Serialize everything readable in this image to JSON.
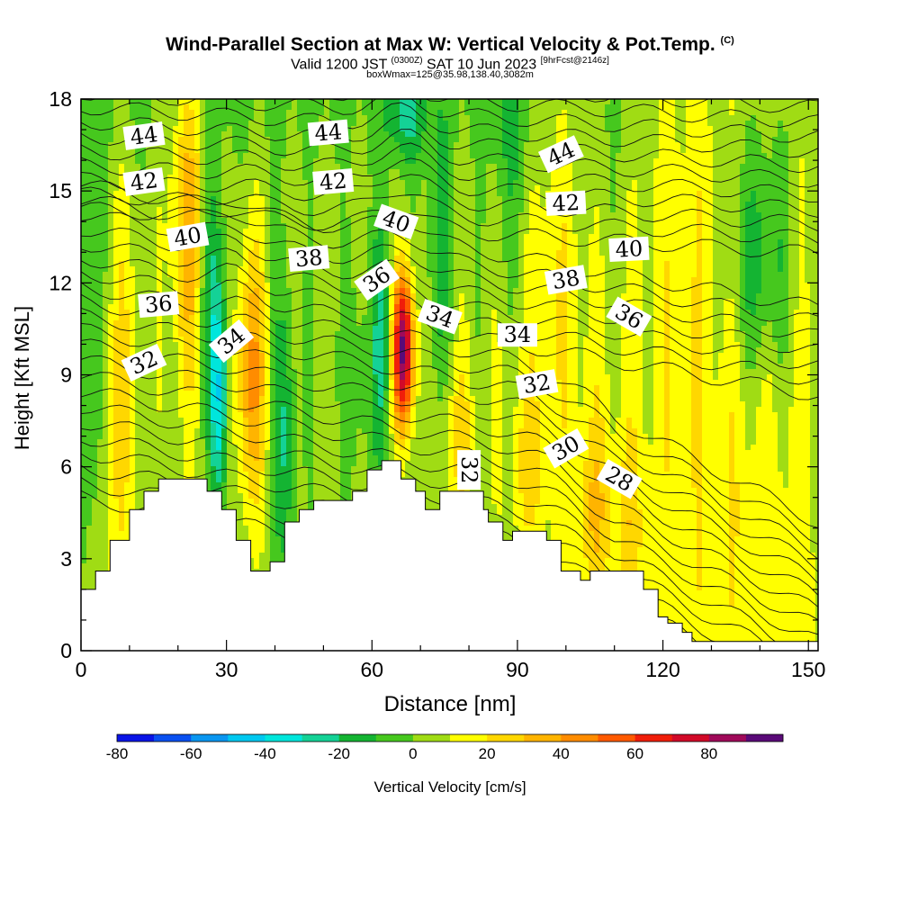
{
  "title": {
    "main": "Wind-Parallel Section at Max W: Vertical Velocity & Pot.Temp.",
    "copyright": "(C)",
    "valid_prefix": "Valid 1200 JST",
    "valid_utc": "(0300Z)",
    "valid_date": "SAT 10 Jun 2023",
    "forecast": "[9hrFcst@2146z]",
    "boxwmax": "boxWmax=125@35.98,138.40,3082m"
  },
  "chart_data": {
    "type": "heatmap",
    "xlabel": "Distance [nm]",
    "ylabel": "Height [Kft MSL]",
    "xlim": [
      0,
      152
    ],
    "ylim": [
      0,
      18
    ],
    "x_ticks": [
      0,
      30,
      60,
      90,
      120,
      150
    ],
    "y_ticks": [
      0,
      3,
      6,
      9,
      12,
      15,
      18
    ],
    "colorbar": {
      "label": "Vertical Velocity [cm/s]",
      "ticks": [
        -80,
        -60,
        -40,
        -20,
        0,
        20,
        40,
        60,
        80
      ],
      "levels": [
        -80,
        -70,
        -60,
        -50,
        -40,
        -30,
        -20,
        -10,
        0,
        10,
        20,
        30,
        40,
        50,
        60,
        70,
        80,
        90
      ],
      "colors": [
        "#0a14e6",
        "#0a50f0",
        "#0a96f0",
        "#00c8f0",
        "#00e6dc",
        "#14d296",
        "#14b432",
        "#46c81e",
        "#a0dc14",
        "#ffff00",
        "#ffd700",
        "#ffb400",
        "#ff8c00",
        "#ff5a00",
        "#f01e0a",
        "#d20a28",
        "#a00a5a",
        "#5a0a78"
      ]
    },
    "terrain_kft": [
      [
        0,
        2.0
      ],
      [
        3,
        2.0
      ],
      [
        3,
        2.6
      ],
      [
        6,
        2.6
      ],
      [
        6,
        3.6
      ],
      [
        10,
        3.6
      ],
      [
        10,
        4.6
      ],
      [
        13,
        4.6
      ],
      [
        13,
        5.2
      ],
      [
        16,
        5.2
      ],
      [
        16,
        5.6
      ],
      [
        26,
        5.6
      ],
      [
        26,
        5.2
      ],
      [
        29,
        5.2
      ],
      [
        29,
        4.6
      ],
      [
        32,
        4.6
      ],
      [
        32,
        3.6
      ],
      [
        35,
        3.6
      ],
      [
        35,
        2.6
      ],
      [
        39,
        2.6
      ],
      [
        39,
        2.9
      ],
      [
        42,
        2.9
      ],
      [
        42,
        4.2
      ],
      [
        45,
        4.2
      ],
      [
        45,
        4.6
      ],
      [
        48,
        4.6
      ],
      [
        48,
        4.9
      ],
      [
        56,
        4.9
      ],
      [
        56,
        5.2
      ],
      [
        59,
        5.2
      ],
      [
        59,
        5.9
      ],
      [
        62,
        5.9
      ],
      [
        62,
        6.2
      ],
      [
        66,
        6.2
      ],
      [
        66,
        5.6
      ],
      [
        69,
        5.6
      ],
      [
        69,
        5.2
      ],
      [
        71,
        5.2
      ],
      [
        71,
        4.6
      ],
      [
        74,
        4.6
      ],
      [
        74,
        5.2
      ],
      [
        83,
        5.2
      ],
      [
        83,
        4.6
      ],
      [
        84,
        4.6
      ],
      [
        84,
        4.2
      ],
      [
        87,
        4.2
      ],
      [
        87,
        3.6
      ],
      [
        89,
        3.6
      ],
      [
        89,
        3.9
      ],
      [
        96,
        3.9
      ],
      [
        96,
        3.6
      ],
      [
        99,
        3.6
      ],
      [
        99,
        2.6
      ],
      [
        103,
        2.6
      ],
      [
        103,
        2.3
      ],
      [
        105,
        2.3
      ],
      [
        105,
        2.6
      ],
      [
        116,
        2.6
      ],
      [
        116,
        2.0
      ],
      [
        119,
        2.0
      ],
      [
        119,
        1.1
      ],
      [
        121,
        1.1
      ],
      [
        121,
        0.9
      ],
      [
        124,
        0.9
      ],
      [
        124,
        0.6
      ],
      [
        126,
        0.6
      ],
      [
        126,
        0.3
      ],
      [
        152,
        0.3
      ]
    ],
    "theta_labels": [
      {
        "text": "44",
        "x": 13,
        "y": 16.8,
        "rot": -8
      },
      {
        "text": "44",
        "x": 51,
        "y": 16.9,
        "rot": -5
      },
      {
        "text": "44",
        "x": 99,
        "y": 16.2,
        "rot": -25
      },
      {
        "text": "42",
        "x": 13,
        "y": 15.3,
        "rot": -8
      },
      {
        "text": "42",
        "x": 52,
        "y": 15.3,
        "rot": -5
      },
      {
        "text": "42",
        "x": 100,
        "y": 14.6,
        "rot": -3
      },
      {
        "text": "40",
        "x": 22,
        "y": 13.5,
        "rot": -10
      },
      {
        "text": "40",
        "x": 65,
        "y": 14.0,
        "rot": 20
      },
      {
        "text": "40",
        "x": 113,
        "y": 13.1,
        "rot": -3
      },
      {
        "text": "38",
        "x": 47,
        "y": 12.8,
        "rot": -5
      },
      {
        "text": "38",
        "x": 100,
        "y": 12.1,
        "rot": -10
      },
      {
        "text": "36",
        "x": 16,
        "y": 11.3,
        "rot": -5
      },
      {
        "text": "36",
        "x": 61,
        "y": 12.1,
        "rot": -35
      },
      {
        "text": "36",
        "x": 113,
        "y": 10.9,
        "rot": 30
      },
      {
        "text": "34",
        "x": 31,
        "y": 10.1,
        "rot": -40
      },
      {
        "text": "34",
        "x": 74,
        "y": 10.9,
        "rot": 20
      },
      {
        "text": "34",
        "x": 90,
        "y": 10.3,
        "rot": 0
      },
      {
        "text": "32",
        "x": 13,
        "y": 9.4,
        "rot": -25
      },
      {
        "text": "32",
        "x": 94,
        "y": 8.7,
        "rot": -10
      },
      {
        "text": "32",
        "x": 80,
        "y": 5.9,
        "rot": 90
      },
      {
        "text": "30",
        "x": 100,
        "y": 6.6,
        "rot": -30
      },
      {
        "text": "28",
        "x": 111,
        "y": 5.6,
        "rot": 30
      }
    ]
  }
}
